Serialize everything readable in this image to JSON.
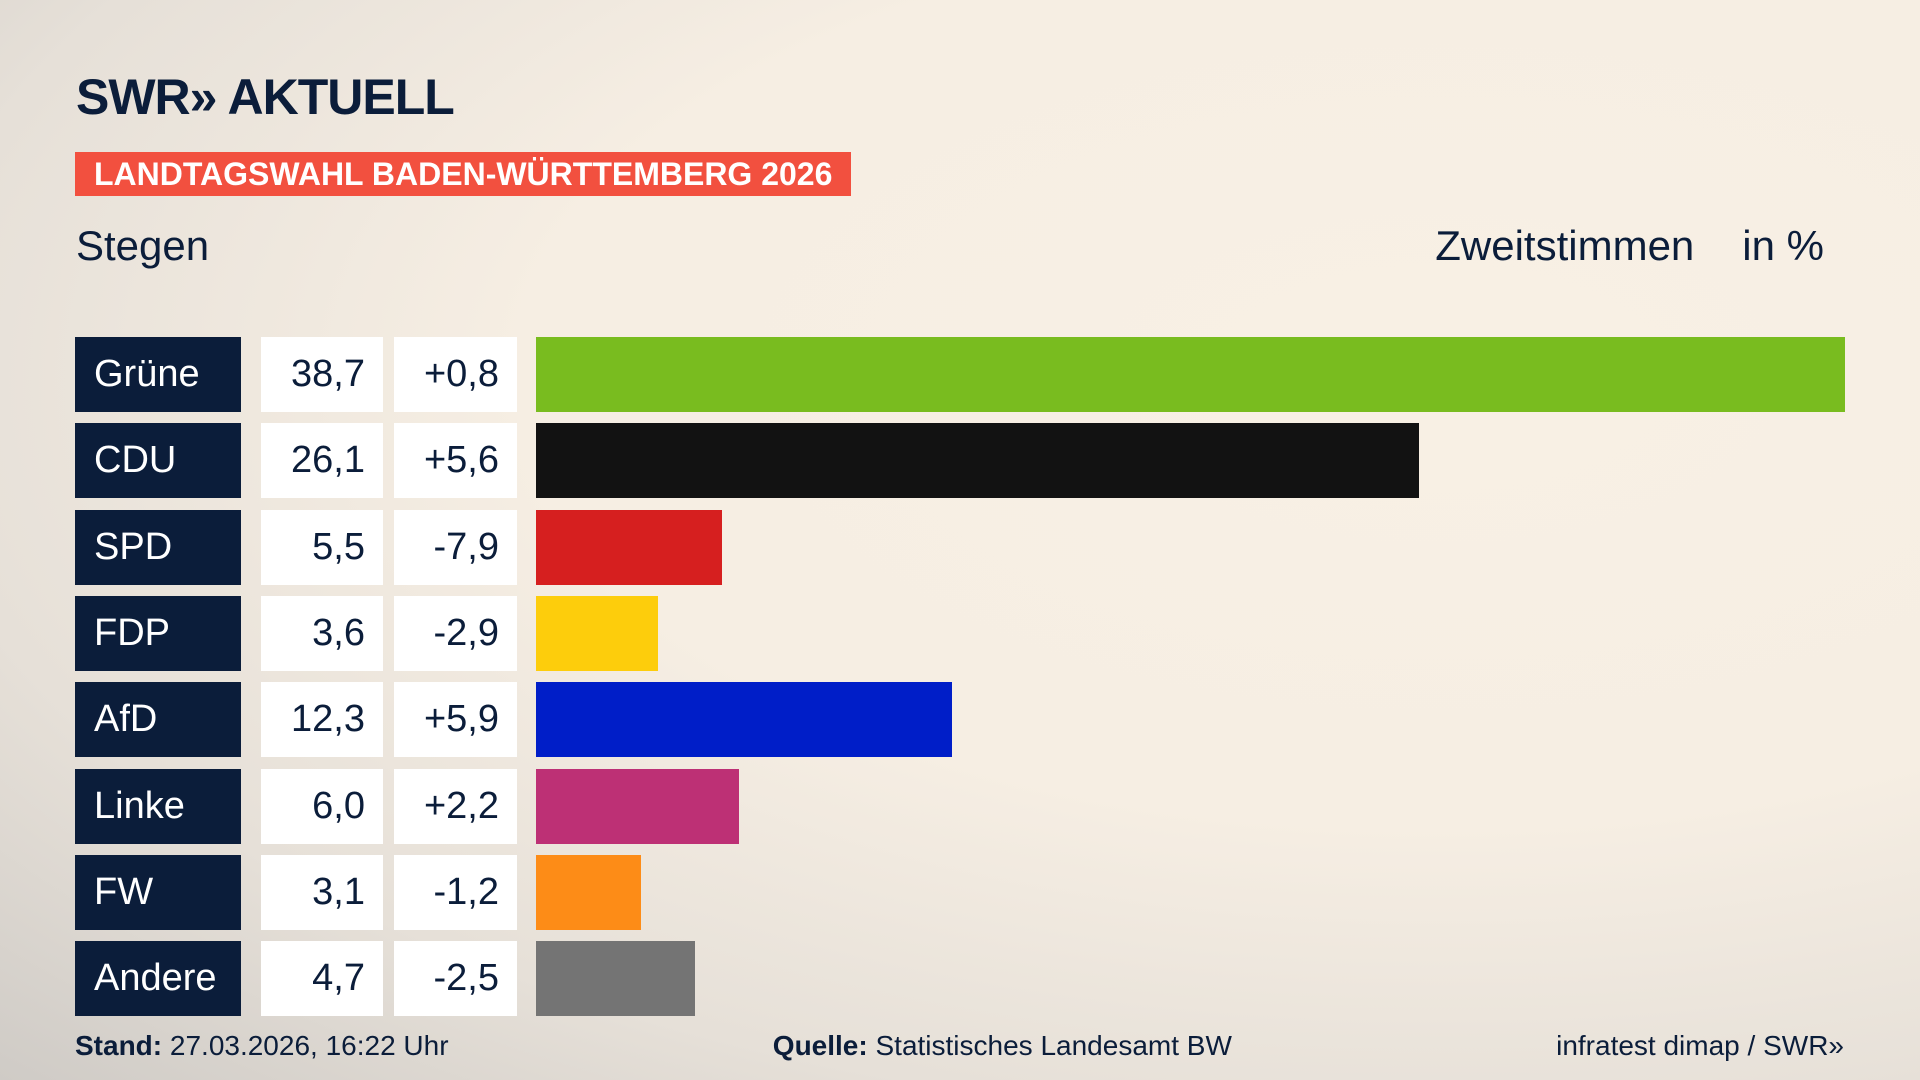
{
  "header": {
    "logo": "SWR» AKTUELL",
    "banner": "LANDTAGSWAHL BADEN-WÜRTTEMBERG 2026",
    "location": "Stegen",
    "measure": "Zweitstimmen",
    "unit": "in %"
  },
  "chart_data": {
    "type": "bar",
    "orientation": "horizontal",
    "categories": [
      "Grüne",
      "CDU",
      "SPD",
      "FDP",
      "AfD",
      "Linke",
      "FW",
      "Andere"
    ],
    "values": [
      38.7,
      26.1,
      5.5,
      3.6,
      12.3,
      6.0,
      3.1,
      4.7
    ],
    "value_labels": [
      "38,7",
      "26,1",
      "5,5",
      "3,6",
      "12,3",
      "6,0",
      "3,1",
      "4,7"
    ],
    "diff_labels": [
      "+0,8",
      "+5,6",
      "-7,9",
      "-2,9",
      "+5,9",
      "+2,2",
      "-1,2",
      "-2,5"
    ],
    "colors": [
      "#79bc1f",
      "#121212",
      "#d61f1f",
      "#fdcd0c",
      "#001ec8",
      "#bd3075",
      "#fd8c17",
      "#747474"
    ],
    "xlim": [
      0,
      38.7
    ],
    "grid": false
  },
  "footer": {
    "stand_label": "Stand:",
    "stand": "27.03.2026, 16:22 Uhr",
    "source_label": "Quelle:",
    "source": "Statistisches Landesamt BW",
    "credit": "infratest dimap / SWR»"
  }
}
